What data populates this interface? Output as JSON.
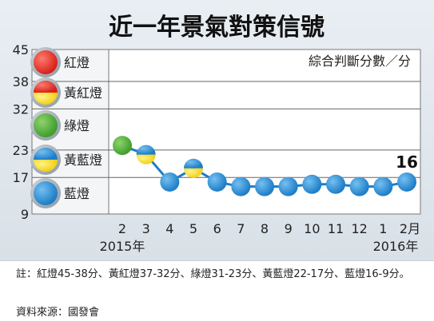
{
  "chart_data": {
    "type": "line",
    "title": "近一年景氣對策信號",
    "unit_note": "綜合判斷分數／分",
    "y_ticks": [
      9,
      17,
      23,
      32,
      38,
      45
    ],
    "ylim": [
      9,
      45
    ],
    "x_labels": [
      "2",
      "3",
      "4",
      "5",
      "6",
      "7",
      "8",
      "9",
      "10",
      "11",
      "12",
      "1",
      "2月"
    ],
    "year_labels": [
      "2015年",
      "2016年"
    ],
    "values": [
      24,
      22,
      16,
      19,
      16,
      15,
      15,
      15,
      15.5,
      15.5,
      15,
      15,
      16
    ],
    "last_value_label": "16",
    "zones": [
      {
        "name": "紅燈",
        "range": [
          38,
          45
        ],
        "color": "#d8221b"
      },
      {
        "name": "黃紅燈",
        "range": [
          32,
          38
        ],
        "color": "#d8221b"
      },
      {
        "name": "綠燈",
        "range": [
          23,
          32
        ],
        "color": "#3f9e2e"
      },
      {
        "name": "黃藍燈",
        "range": [
          17,
          23
        ],
        "color": "#1e7dc6"
      },
      {
        "name": "藍燈",
        "range": [
          9,
          17
        ],
        "color": "#1e7dc6"
      }
    ],
    "line_color": "#1e7dc6",
    "grid": true
  },
  "footnote": "註：紅燈45-38分、黃紅燈37-32分、綠燈31-23分、黃藍燈22-17分、藍燈16-9分。",
  "source": "資料來源：國發會"
}
